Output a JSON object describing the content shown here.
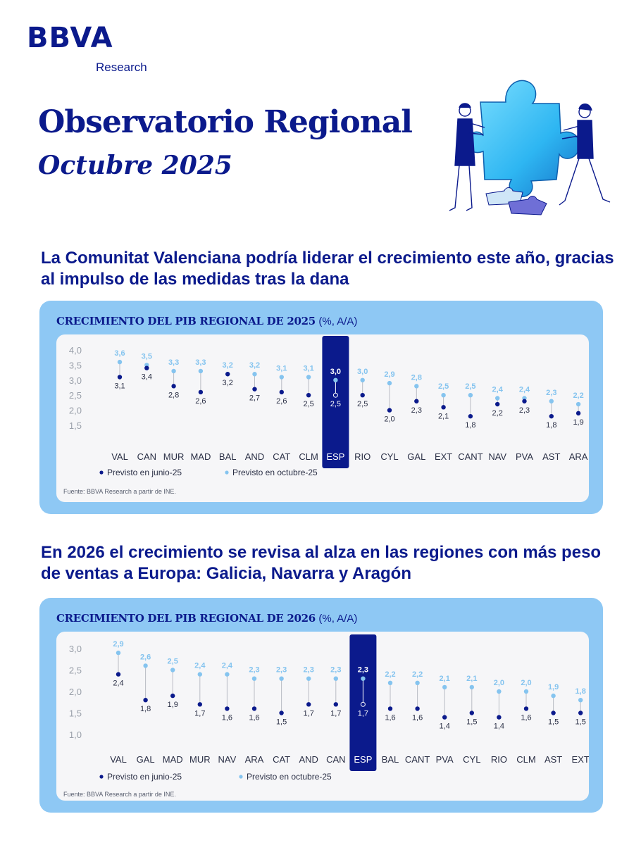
{
  "brand": {
    "name": "BBVA",
    "sub": "Research"
  },
  "header": {
    "title": "Observatorio Regional",
    "subtitle": "Octubre 2025"
  },
  "section1": {
    "headline": "La Comunitat Valenciana podría liderar el crecimiento este año, gracias al impulso de las medidas tras la dana"
  },
  "section2": {
    "headline": "En 2026 el crecimiento se revisa al alza en las regiones con más peso de ventas a Europa: Galicia, Navarra y Aragón"
  },
  "colors": {
    "dark": "#0b1a8c",
    "light": "#85c4ef",
    "card": "#8ec8f4",
    "panel": "#f6f6f8"
  },
  "chart_data": [
    {
      "type": "scatter",
      "title": "CRECIMIENTO DEL PIB REGIONAL DE 2025",
      "unit": "(%, A/A)",
      "categories": [
        "VAL",
        "CAN",
        "MUR",
        "MAD",
        "BAL",
        "AND",
        "CAT",
        "CLM",
        "ESP",
        "RIO",
        "CYL",
        "GAL",
        "EXT",
        "CANT",
        "NAV",
        "PVA",
        "AST",
        "ARA"
      ],
      "highlight": "ESP",
      "series": [
        {
          "name": "Previsto en junio-25",
          "values": [
            3.1,
            3.4,
            2.8,
            2.6,
            3.2,
            2.7,
            2.6,
            2.5,
            2.5,
            2.5,
            2.0,
            2.3,
            2.1,
            1.8,
            2.2,
            2.3,
            1.8,
            1.9
          ]
        },
        {
          "name": "Previsto en octubre-25",
          "values": [
            3.6,
            3.5,
            3.3,
            3.3,
            3.2,
            3.2,
            3.1,
            3.1,
            3.0,
            3.0,
            2.9,
            2.8,
            2.5,
            2.5,
            2.4,
            2.4,
            2.3,
            2.2
          ]
        }
      ],
      "y_ticks": [
        "4,0",
        "3,5",
        "3,0",
        "2,5",
        "2,0",
        "1,5"
      ],
      "ylim": [
        1.5,
        4.0
      ],
      "grid": false,
      "legend": "bottom-left",
      "source": "Fuente: BBVA Research a partir de INE."
    },
    {
      "type": "scatter",
      "title": "CRECIMIENTO DEL PIB REGIONAL DE 2026",
      "unit": "(%, A/A)",
      "categories": [
        "VAL",
        "GAL",
        "MAD",
        "MUR",
        "NAV",
        "ARA",
        "CAT",
        "AND",
        "CAN",
        "ESP",
        "BAL",
        "CANT",
        "PVA",
        "CYL",
        "RIO",
        "CLM",
        "AST",
        "EXT"
      ],
      "highlight": "ESP",
      "series": [
        {
          "name": "Previsto en junio-25",
          "values": [
            2.4,
            1.8,
            1.9,
            1.7,
            1.6,
            1.6,
            1.5,
            1.7,
            1.7,
            1.7,
            1.6,
            1.6,
            1.4,
            1.5,
            1.4,
            1.6,
            1.5,
            1.5
          ]
        },
        {
          "name": "Previsto en octubre-25",
          "values": [
            2.9,
            2.6,
            2.5,
            2.4,
            2.4,
            2.3,
            2.3,
            2.3,
            2.3,
            2.3,
            2.2,
            2.2,
            2.1,
            2.1,
            2.0,
            2.0,
            1.9,
            1.8
          ]
        }
      ],
      "y_ticks": [
        "3,0",
        "2,5",
        "2,0",
        "1,5",
        "1,0"
      ],
      "ylim": [
        1.0,
        3.0
      ],
      "grid": false,
      "legend": "bottom-left",
      "source": "Fuente: BBVA Research a partir de INE."
    }
  ]
}
